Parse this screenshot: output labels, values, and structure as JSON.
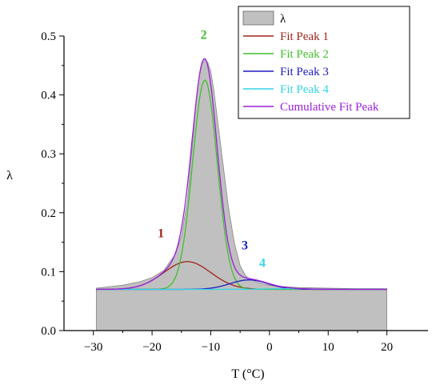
{
  "chart_data": {
    "type": "area",
    "xlabel": "T (°C)",
    "ylabel": "λ",
    "xlim": [
      -35,
      27
    ],
    "ylim": [
      0.0,
      0.5
    ],
    "xticks": [
      -30,
      -20,
      -10,
      0,
      10,
      20
    ],
    "yticks": [
      0.0,
      0.1,
      0.2,
      0.3,
      0.4,
      0.5
    ],
    "xtick_labels": [
      "−30",
      "−20",
      "−10",
      "0",
      "10",
      "20"
    ],
    "ytick_labels": [
      "0.0",
      "0.1",
      "0.2",
      "0.3",
      "0.4",
      "0.5"
    ],
    "legend_position": "top-right",
    "baseline": 0.07,
    "area": {
      "name": "λ",
      "color": "#c0c0c0",
      "x": [
        -29.5,
        -25,
        -22,
        -20,
        -18,
        -16,
        -15,
        -14,
        -13,
        -12.5,
        -12,
        -11.5,
        -11,
        -10.5,
        -10,
        -9.5,
        -9,
        -8,
        -7,
        -6,
        -5,
        -4,
        -3,
        -2,
        -1,
        0,
        2,
        5,
        10,
        15,
        20
      ],
      "y": [
        0.072,
        0.077,
        0.083,
        0.09,
        0.102,
        0.13,
        0.16,
        0.22,
        0.33,
        0.39,
        0.43,
        0.452,
        0.46,
        0.455,
        0.44,
        0.41,
        0.37,
        0.29,
        0.21,
        0.15,
        0.11,
        0.092,
        0.086,
        0.082,
        0.079,
        0.077,
        0.075,
        0.073,
        0.072,
        0.071,
        0.071
      ]
    },
    "series": [
      {
        "name": "Fit Peak 1",
        "color": "#a0231b",
        "type": "gauss",
        "center": -14.0,
        "amplitude": 0.047,
        "sigma": 4.0
      },
      {
        "name": "Fit Peak 2",
        "color": "#3fc12a",
        "type": "gauss",
        "center": -11.0,
        "amplitude": 0.355,
        "sigma": 2.1
      },
      {
        "name": "Fit Peak 3",
        "color": "#1c1cbf",
        "type": "gauss",
        "center": -3.5,
        "amplitude": 0.016,
        "sigma": 3.2
      },
      {
        "name": "Fit Peak 4",
        "color": "#33d4e6",
        "type": "gauss",
        "center": 3.0,
        "amplitude": 0.001,
        "sigma": 4.0
      },
      {
        "name": "Cumulative Fit Peak",
        "color": "#9b20dc",
        "type": "sum"
      }
    ],
    "annotations": [
      {
        "text": "1",
        "x": -18.5,
        "y": 0.158,
        "color": "#a0231b"
      },
      {
        "text": "2",
        "x": -11.2,
        "y": 0.495,
        "color": "#3fc12a"
      },
      {
        "text": "3",
        "x": -4.2,
        "y": 0.138,
        "color": "#1c1cbf"
      },
      {
        "text": "4",
        "x": -1.2,
        "y": 0.108,
        "color": "#33d4e6"
      }
    ]
  }
}
